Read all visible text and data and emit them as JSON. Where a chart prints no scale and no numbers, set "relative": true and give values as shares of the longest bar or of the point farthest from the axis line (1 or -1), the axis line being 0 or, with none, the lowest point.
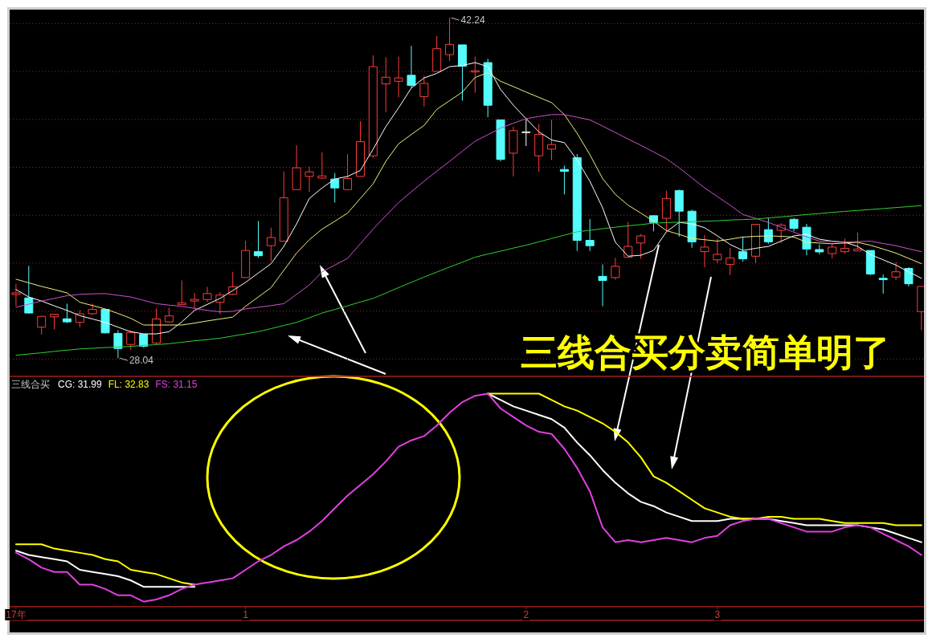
{
  "chart_data": [
    {
      "type": "candlestick",
      "categories": [
        null,
        null,
        null,
        null,
        null,
        null,
        null,
        null,
        null,
        null,
        null,
        null,
        null,
        null,
        null,
        null,
        null,
        null,
        null,
        null,
        null,
        null,
        null,
        null,
        null,
        null,
        null,
        null,
        null,
        null,
        null,
        null,
        null,
        null,
        null,
        null,
        null,
        null,
        null,
        null,
        null,
        null,
        null,
        null,
        null,
        null,
        null,
        null,
        null,
        null,
        null,
        null,
        null,
        null,
        null,
        null,
        null,
        null,
        null,
        null,
        null,
        null,
        null,
        null,
        null,
        null,
        null,
        null,
        null,
        null,
        null,
        null
      ],
      "ohlc": [
        [
          30.69,
          31.14,
          30.22,
          30.76
        ],
        [
          30.55,
          31.89,
          29.89,
          29.92
        ],
        [
          29.33,
          29.8,
          29.02,
          29.78
        ],
        [
          29.76,
          29.89,
          29.24,
          29.87
        ],
        [
          29.68,
          30.31,
          29.5,
          29.55
        ],
        [
          29.53,
          30.03,
          29.33,
          29.89
        ],
        [
          29.89,
          30.31,
          29.84,
          30.07
        ],
        [
          30.07,
          30.09,
          29.07,
          29.09
        ],
        [
          29.07,
          29.2,
          28.04,
          28.44
        ],
        [
          28.61,
          29.2,
          28.37,
          29.11
        ],
        [
          29.03,
          29.05,
          28.48,
          28.53
        ],
        [
          28.67,
          30.11,
          28.59,
          29.67
        ],
        [
          29.55,
          30.14,
          29.53,
          29.8
        ],
        [
          30.27,
          31.28,
          30.27,
          30.34
        ],
        [
          30.42,
          30.76,
          30.11,
          30.49
        ],
        [
          30.48,
          31.01,
          30.39,
          30.73
        ],
        [
          30.37,
          30.78,
          29.87,
          30.67
        ],
        [
          30.7,
          31.64,
          30.67,
          31.01
        ],
        [
          31.4,
          32.94,
          31.4,
          32.53
        ],
        [
          32.48,
          33.76,
          32.22,
          32.31
        ],
        [
          32.73,
          33.48,
          32.09,
          33.07
        ],
        [
          32.92,
          35.83,
          32.92,
          34.73
        ],
        [
          35.07,
          36.92,
          35.07,
          35.98
        ],
        [
          35.62,
          36.03,
          34.98,
          35.81
        ],
        [
          35.55,
          36.62,
          35.51,
          35.64
        ],
        [
          35.51,
          35.76,
          34.53,
          35.14
        ],
        [
          35.07,
          36.55,
          35.07,
          35.53
        ],
        [
          35.62,
          37.92,
          35.62,
          37.07
        ],
        [
          36.48,
          40.67,
          36.4,
          40.2
        ],
        [
          39.48,
          40.59,
          38.31,
          39.76
        ],
        [
          39.59,
          40.62,
          38.92,
          39.73
        ],
        [
          39.84,
          41.07,
          39.31,
          39.42
        ],
        [
          38.95,
          39.81,
          38.53,
          39.5
        ],
        [
          40.0,
          41.48,
          40.0,
          40.95
        ],
        [
          40.7,
          42.24,
          40.44,
          41.13
        ],
        [
          41.11,
          41.11,
          38.78,
          40.22
        ],
        [
          39.98,
          40.62,
          39.11,
          40.03
        ],
        [
          40.37,
          40.53,
          38.09,
          38.59
        ],
        [
          37.98,
          37.98,
          36.25,
          36.33
        ],
        [
          36.59,
          37.7,
          35.62,
          37.53
        ],
        [
          37.48,
          38.0,
          36.89,
          37.48
        ],
        [
          36.48,
          37.81,
          35.81,
          37.37
        ],
        [
          36.76,
          37.98,
          36.31,
          36.95
        ],
        [
          35.91,
          36.07,
          34.87,
          35.83
        ],
        [
          36.4,
          36.55,
          32.51,
          32.95
        ],
        [
          32.95,
          33.84,
          32.51,
          32.73
        ],
        [
          31.45,
          31.95,
          30.2,
          31.28
        ],
        [
          31.4,
          32.22,
          31.31,
          31.87
        ],
        [
          32.25,
          33.73,
          32.25,
          32.7
        ],
        [
          32.84,
          33.22,
          32.18,
          33.14
        ],
        [
          33.98,
          34.0,
          33.33,
          33.7
        ],
        [
          33.87,
          35.03,
          33.33,
          34.7
        ],
        [
          35.03,
          35.07,
          33.11,
          34.17
        ],
        [
          34.17,
          34.23,
          32.64,
          32.89
        ],
        [
          32.48,
          33.18,
          31.83,
          32.67
        ],
        [
          32.14,
          33.03,
          32.0,
          32.37
        ],
        [
          31.95,
          32.64,
          31.5,
          32.22
        ],
        [
          32.48,
          33.11,
          32.07,
          32.18
        ],
        [
          32.29,
          33.62,
          32.0,
          33.62
        ],
        [
          33.4,
          33.89,
          32.81,
          32.89
        ],
        [
          33.37,
          33.67,
          32.84,
          33.59
        ],
        [
          33.83,
          33.89,
          33.33,
          33.45
        ],
        [
          33.5,
          33.64,
          32.33,
          32.59
        ],
        [
          32.57,
          32.78,
          32.37,
          32.47
        ],
        [
          32.4,
          32.81,
          32.2,
          32.67
        ],
        [
          32.48,
          33.03,
          32.4,
          32.62
        ],
        [
          32.51,
          33.28,
          32.51,
          32.59
        ],
        [
          32.53,
          32.53,
          31.5,
          31.55
        ],
        [
          31.37,
          31.53,
          30.73,
          31.31
        ],
        [
          31.42,
          32.03,
          31.29,
          31.64
        ],
        [
          31.78,
          31.83,
          31.03,
          31.14
        ],
        [
          29.98,
          31.03,
          29.2,
          31.03
        ]
      ],
      "colors": [
        "#ff3c3c",
        "#54fcfc",
        "#ff3c3c",
        "#ff3c3c",
        "#54fcfc",
        "#ff3c3c",
        "#ff3c3c",
        "#54fcfc",
        "#54fcfc",
        "#ff3c3c",
        "#54fcfc",
        "#ff3c3c",
        "#ff3c3c",
        "#ff3c3c",
        "#ff3c3c",
        "#ff3c3c",
        "#ff3c3c",
        "#ff3c3c",
        "#ff3c3c",
        "#54fcfc",
        "#ff3c3c",
        "#ff3c3c",
        "#ff3c3c",
        "#ff3c3c",
        "#ff3c3c",
        "#54fcfc",
        "#ff3c3c",
        "#ff3c3c",
        "#ff3c3c",
        "#ff3c3c",
        "#ff3c3c",
        "#54fcfc",
        "#ff3c3c",
        "#ff3c3c",
        "#ff3c3c",
        "#54fcfc",
        "#ff3c3c",
        "#54fcfc",
        "#54fcfc",
        "#ff3c3c",
        "#ffffff",
        "#ff3c3c",
        "#ff3c3c",
        "#54fcfc",
        "#54fcfc",
        "#54fcfc",
        "#54fcfc",
        "#ff3c3c",
        "#ff3c3c",
        "#ff3c3c",
        "#54fcfc",
        "#ff3c3c",
        "#54fcfc",
        "#54fcfc",
        "#ff3c3c",
        "#ff3c3c",
        "#ff3c3c",
        "#54fcfc",
        "#ff3c3c",
        "#54fcfc",
        "#ff3c3c",
        "#54fcfc",
        "#54fcfc",
        "#54fcfc",
        "#ff3c3c",
        "#ff3c3c",
        "#ff3c3c",
        "#54fcfc",
        "#54fcfc",
        "#ff3c3c",
        "#54fcfc",
        "#ff3c3c"
      ],
      "ylim": [
        27.31,
        42.58
      ],
      "yticks": [
        {
          "value": 28,
          "label": null
        },
        {
          "value": 30,
          "label": null
        },
        {
          "value": 32,
          "label": null
        },
        {
          "value": 34,
          "label": null
        },
        {
          "value": 36,
          "label": null
        },
        {
          "value": 38,
          "label": null
        },
        {
          "value": 40,
          "label": null
        },
        {
          "value": 42,
          "label": null
        }
      ],
      "grid": "y",
      "series": [
        {
          "type": "line",
          "color": "#ffffff",
          "values": [
            30.9,
            30.59,
            30.42,
            30.22,
            30.03,
            29.81,
            29.67,
            29.53,
            29.33,
            29.14,
            29.05,
            29.05,
            29.14,
            29.55,
            30.03,
            30.28,
            30.53,
            30.86,
            31.2,
            31.59,
            31.98,
            32.7,
            33.64,
            34.7,
            35.14,
            35.51,
            35.62,
            35.87,
            36.75,
            37.7,
            38.48,
            39.31,
            39.73,
            39.92,
            40.2,
            40.25,
            40.37,
            40.2,
            39.25,
            38.59,
            38.03,
            37.48,
            37.14,
            37.03,
            36.31,
            35.42,
            34.31,
            32.87,
            32.29,
            32.33,
            32.53,
            33.31,
            33.7,
            33.64,
            33.48,
            33.14,
            32.78,
            32.53,
            32.62,
            32.7,
            32.92,
            33.14,
            33.2,
            33.0,
            32.92,
            32.87,
            32.7,
            32.36,
            32.14,
            31.92,
            31.64,
            31.37
          ]
        },
        {
          "type": "line",
          "color": "#f0f080",
          "values": [
            31.33,
            31.18,
            31.03,
            30.9,
            30.76,
            30.37,
            30.23,
            30.09,
            29.9,
            29.7,
            29.42,
            29.42,
            29.42,
            29.42,
            29.5,
            29.59,
            29.67,
            29.75,
            30.2,
            30.59,
            30.98,
            31.7,
            32.42,
            32.98,
            33.42,
            33.75,
            34.09,
            34.7,
            35.31,
            36.25,
            36.98,
            37.37,
            37.75,
            38.42,
            38.78,
            39.14,
            39.75,
            39.95,
            39.59,
            39.37,
            39.14,
            38.92,
            38.7,
            38.2,
            37.42,
            36.53,
            35.53,
            34.87,
            34.42,
            34.09,
            33.75,
            33.36,
            33.2,
            33.03,
            32.98,
            32.92,
            33.0,
            33.09,
            33.12,
            33.14,
            33.12,
            33.09,
            32.87,
            32.84,
            32.81,
            32.84,
            32.87,
            32.75,
            32.59,
            32.42,
            32.2,
            31.98
          ]
        },
        {
          "type": "line",
          "color": "#d050d0",
          "values": [
            30.16,
            30.29,
            30.42,
            30.53,
            30.64,
            30.7,
            30.72,
            30.73,
            30.66,
            30.59,
            30.45,
            30.31,
            30.25,
            30.2,
            30.11,
            30.03,
            29.97,
            29.99,
            30.09,
            30.16,
            30.23,
            30.31,
            30.7,
            31.09,
            31.64,
            31.92,
            32.2,
            32.81,
            33.42,
            33.98,
            34.53,
            34.98,
            35.42,
            35.84,
            36.25,
            36.67,
            37.09,
            37.36,
            37.64,
            37.84,
            38.03,
            38.12,
            38.2,
            38.2,
            38.09,
            37.98,
            37.72,
            37.45,
            37.18,
            36.92,
            36.64,
            36.36,
            35.98,
            35.56,
            35.14,
            34.78,
            34.42,
            34.03,
            33.87,
            33.7,
            33.5,
            33.29,
            33.1,
            32.92,
            32.9,
            32.89,
            32.9,
            32.92,
            32.82,
            32.73,
            32.6,
            32.48
          ]
        },
        {
          "type": "line",
          "color": "#30d030",
          "values": [
            28.16,
            28.21,
            28.26,
            28.32,
            28.37,
            28.42,
            28.45,
            28.48,
            28.5,
            28.53,
            28.57,
            28.6,
            28.64,
            28.7,
            28.76,
            28.81,
            28.87,
            28.96,
            29.05,
            29.14,
            29.27,
            29.4,
            29.53,
            29.72,
            29.92,
            30.07,
            30.22,
            30.38,
            30.53,
            30.75,
            30.98,
            31.2,
            31.42,
            31.63,
            31.84,
            32.04,
            32.25,
            32.38,
            32.5,
            32.63,
            32.75,
            32.89,
            33.03,
            33.17,
            33.31,
            33.37,
            33.44,
            33.5,
            33.56,
            33.61,
            33.67,
            33.69,
            33.71,
            33.73,
            33.75,
            33.77,
            33.8,
            33.82,
            33.84,
            33.89,
            33.93,
            33.98,
            34.03,
            34.07,
            34.12,
            34.16,
            34.2,
            34.24,
            34.28,
            34.32,
            34.36,
            34.4
          ]
        }
      ],
      "annotations": [
        "42.24",
        "28.04",
        "三线合买分卖简单明了"
      ]
    },
    {
      "type": "line",
      "title": "三线合买",
      "relative": true,
      "categories": [
        "17年",
        null,
        null,
        null,
        null,
        null,
        null,
        null,
        null,
        null,
        null,
        null,
        null,
        null,
        null,
        null,
        null,
        null,
        "1",
        null,
        null,
        null,
        null,
        null,
        null,
        null,
        null,
        null,
        null,
        null,
        null,
        null,
        null,
        null,
        null,
        null,
        null,
        null,
        null,
        null,
        "2",
        null,
        null,
        null,
        null,
        null,
        null,
        null,
        null,
        null,
        null,
        null,
        null,
        null,
        null,
        "3",
        null,
        null,
        null,
        null,
        null,
        null,
        null,
        null,
        null,
        null,
        null,
        null,
        null,
        null,
        null,
        null
      ],
      "legend": "top left",
      "series": [
        {
          "name": "CG: 31.99",
          "color": "#ffffff",
          "values": [
            0.26,
            0.24,
            0.23,
            0.22,
            0.21,
            0.17,
            0.16,
            0.15,
            0.14,
            0.12,
            0.09,
            0.09,
            0.09,
            0.09,
            0.09,
            null,
            null,
            null,
            null,
            null,
            null,
            null,
            null,
            null,
            null,
            null,
            null,
            null,
            null,
            null,
            null,
            null,
            null,
            null,
            null,
            null,
            null,
            1.0,
            0.97,
            0.94,
            0.92,
            0.9,
            0.88,
            0.84,
            0.77,
            0.71,
            0.64,
            0.58,
            0.53,
            0.49,
            0.47,
            0.44,
            0.42,
            0.4,
            0.4,
            0.4,
            0.41,
            0.41,
            0.41,
            0.41,
            0.4,
            0.39,
            0.38,
            0.38,
            0.38,
            0.38,
            0.38,
            0.37,
            0.36,
            0.34,
            0.32,
            0.3
          ]
        },
        {
          "name": "FL: 32.83",
          "color": "#ffff00",
          "values": [
            0.29,
            0.29,
            0.29,
            0.27,
            0.26,
            0.25,
            0.24,
            0.22,
            0.21,
            0.17,
            0.16,
            0.15,
            0.13,
            0.11,
            0.1,
            null,
            null,
            null,
            null,
            null,
            null,
            null,
            null,
            null,
            null,
            null,
            null,
            null,
            null,
            null,
            null,
            null,
            null,
            null,
            null,
            null,
            null,
            1.0,
            1.0,
            1.0,
            1.0,
            1.0,
            0.97,
            0.94,
            0.92,
            0.89,
            0.86,
            0.82,
            0.77,
            0.7,
            0.61,
            0.58,
            0.54,
            0.5,
            0.46,
            0.44,
            0.42,
            0.41,
            0.41,
            0.42,
            0.42,
            0.41,
            0.41,
            0.41,
            0.4,
            0.39,
            0.39,
            0.39,
            0.39,
            0.38,
            0.38,
            0.38
          ]
        },
        {
          "name": "FS: 31.15",
          "color": "#e040e0",
          "values": [
            0.25,
            0.22,
            0.18,
            0.16,
            0.16,
            0.1,
            0.1,
            0.08,
            0.05,
            0.05,
            0.02,
            0.03,
            0.05,
            0.08,
            0.1,
            0.11,
            0.12,
            0.13,
            0.17,
            0.21,
            0.24,
            0.28,
            0.31,
            0.35,
            0.4,
            0.46,
            0.52,
            0.57,
            0.62,
            0.68,
            0.75,
            0.78,
            0.8,
            0.85,
            0.91,
            0.96,
            0.99,
            1.0,
            0.93,
            0.89,
            0.85,
            0.82,
            0.81,
            0.74,
            0.65,
            0.54,
            0.37,
            0.3,
            0.31,
            0.3,
            0.31,
            0.32,
            0.31,
            0.3,
            0.32,
            0.33,
            0.38,
            0.4,
            0.41,
            0.41,
            0.39,
            0.37,
            0.35,
            0.35,
            0.35,
            0.37,
            0.38,
            0.37,
            0.34,
            0.31,
            0.28,
            0.24
          ]
        }
      ]
    }
  ]
}
